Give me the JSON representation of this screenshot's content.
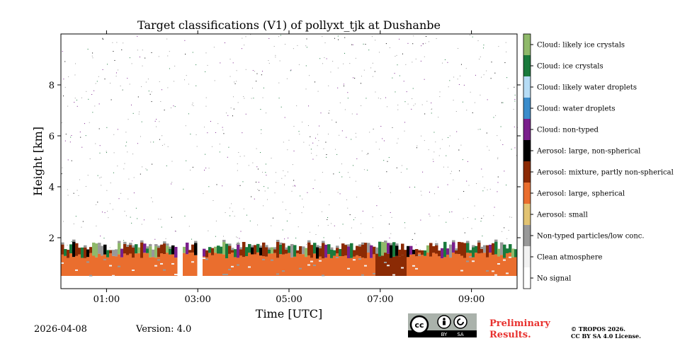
{
  "chart_data": {
    "type": "heatmap",
    "title": "Target classifications (V1) of pollyxt_tjk at Dushanbe",
    "xlabel": "Time [UTC]",
    "ylabel": "Height [km]",
    "xlim_hours": [
      0,
      10
    ],
    "ylim_km": [
      0,
      10
    ],
    "x_ticks": [
      {
        "value": 1,
        "label": "01:00"
      },
      {
        "value": 3,
        "label": "03:00"
      },
      {
        "value": 5,
        "label": "05:00"
      },
      {
        "value": 7,
        "label": "07:00"
      },
      {
        "value": 9,
        "label": "09:00"
      }
    ],
    "y_ticks": [
      {
        "value": 2,
        "label": "2"
      },
      {
        "value": 4,
        "label": "4"
      },
      {
        "value": 6,
        "label": "6"
      },
      {
        "value": 8,
        "label": "8"
      }
    ],
    "legend": [
      {
        "label": "Cloud: likely ice crystals",
        "color": "#8fb96a"
      },
      {
        "label": "Cloud: ice crystals",
        "color": "#1a7a3c"
      },
      {
        "label": "Cloud: likely water droplets",
        "color": "#b6dcf5"
      },
      {
        "label": "Cloud: water droplets",
        "color": "#3a8ccb"
      },
      {
        "label": "Cloud: non-typed",
        "color": "#7a1f8c"
      },
      {
        "label": "Aerosol: large, non-spherical",
        "color": "#000000"
      },
      {
        "label": "Aerosol: mixture, partly non-spherical",
        "color": "#8b2a04"
      },
      {
        "label": "Aerosol: large, spherical",
        "color": "#ea6e2e"
      },
      {
        "label": "Aerosol: small",
        "color": "#e2c372"
      },
      {
        "label": "Non-typed particles/low conc.",
        "color": "#999999"
      },
      {
        "label": "Clean atmosphere",
        "color": "#f2f2f2"
      },
      {
        "label": "No signal",
        "color": "#ffffff"
      }
    ],
    "layers": {
      "blind_zone_top_km": 0.5,
      "aerosol_top_km": 1.3,
      "layer_top_km": 1.6,
      "data_gaps_hours": [
        [
          2.5,
          2.67
        ],
        [
          2.97,
          3.07
        ]
      ],
      "dense_aerosol_period_hours": [
        6.88,
        7.55
      ],
      "scattered_signal_top_km": 10
    }
  },
  "footer": {
    "date": "2026-04-08",
    "version": "Version: 4.0",
    "preliminary_line1": "Preliminary",
    "preliminary_line2": "Results.",
    "copyright_line1": "© TROPOS 2026.",
    "copyright_line2": "CC BY SA 4.0 License."
  },
  "license_badge": {
    "cc": "cc",
    "by": "BY",
    "sa": "SA"
  }
}
